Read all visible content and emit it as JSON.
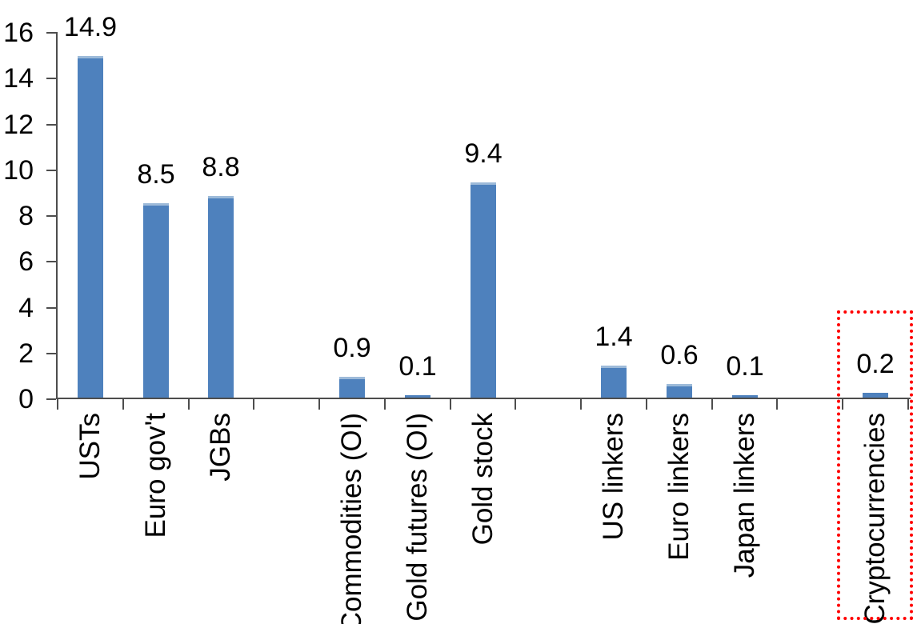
{
  "chart_data": {
    "type": "bar",
    "title": "",
    "categories": [
      "USTs",
      "Euro gov't",
      "JGBs",
      "",
      "Commodities (OI)",
      "Gold futures (OI)",
      "Gold stock",
      "",
      "US linkers",
      "Euro linkers",
      "Japan linkers",
      "",
      "Cryptocurrencies"
    ],
    "values": [
      14.9,
      8.5,
      8.8,
      null,
      0.9,
      0.1,
      9.4,
      null,
      1.4,
      0.6,
      0.1,
      null,
      0.2
    ],
    "bar_labels": [
      "14.9",
      "8.5",
      "8.8",
      null,
      "0.9",
      "0.1",
      "9.4",
      null,
      "1.4",
      "0.6",
      "0.1",
      null,
      "0.2"
    ],
    "yticks": [
      0,
      2,
      4,
      6,
      8,
      10,
      12,
      14,
      16
    ],
    "ylim": [
      0,
      16
    ],
    "xlabel": "",
    "ylabel": "",
    "grid": false,
    "legend": false,
    "bar_color": "#4E81BD",
    "bar_top_highlight_color": "#9DBAD9",
    "axis_color": "#4D4D4D",
    "text_color": "#000000",
    "highlight": {
      "category": "Cryptocurrencies",
      "label": "0.2",
      "style": "red-dotted-rectangle",
      "color": "#FF0000"
    }
  }
}
